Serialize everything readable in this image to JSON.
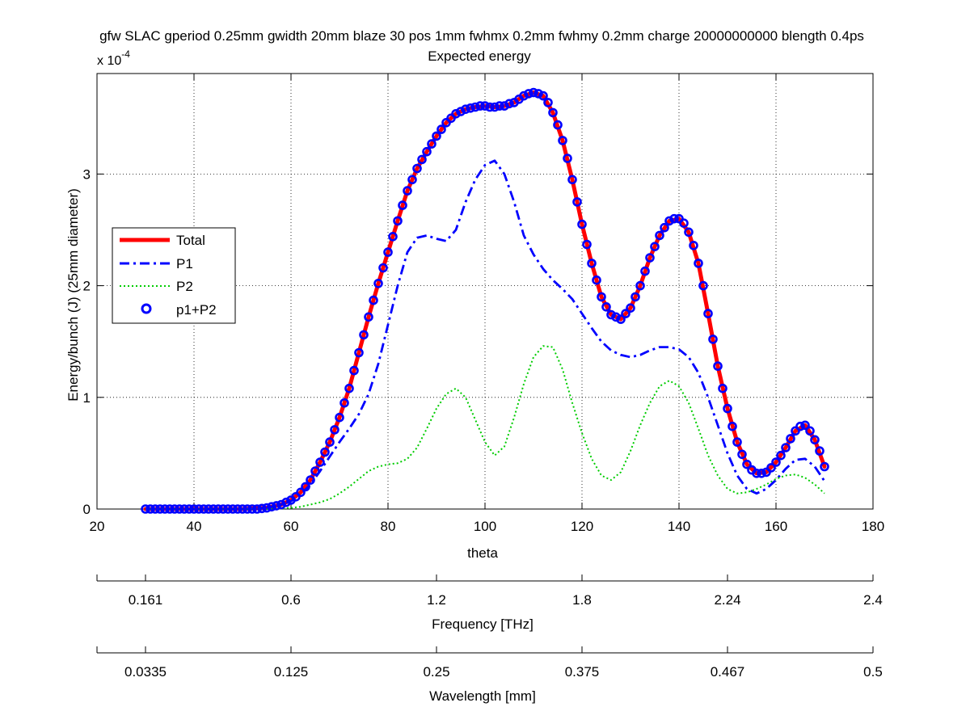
{
  "chart_data": {
    "type": "line",
    "title": "gfw SLAC gperiod 0.25mm gwidth 20mm blaze 30 pos 1mm fwhmx 0.2mm fwhmy 0.2mm charge 20000000000 blength 0.4ps",
    "subtitle": "Expected energy",
    "xlabel": "theta",
    "ylabel": "Energy/bunch (J) (25mm diameter)",
    "y_multiplier": "x 10",
    "y_multiplier_exp": "-4",
    "xlim": [
      20,
      180
    ],
    "ylim": [
      0,
      3.9
    ],
    "x_ticks": [
      20,
      40,
      60,
      80,
      100,
      120,
      140,
      160,
      180
    ],
    "y_ticks": [
      0,
      1,
      2,
      3
    ],
    "grid": true,
    "legend_position": "left",
    "legend": [
      "Total",
      "P1",
      "P2",
      "p1+P2"
    ],
    "series": [
      {
        "name": "Total",
        "color": "#ff0000",
        "style": "solid",
        "x": [
          30,
          50,
          55,
          58,
          60,
          62,
          64,
          66,
          68,
          70,
          72,
          74,
          76,
          78,
          80,
          82,
          84,
          86,
          88,
          90,
          92,
          94,
          96,
          98,
          100,
          102,
          104,
          106,
          108,
          110,
          112,
          114,
          116,
          118,
          120,
          122,
          124,
          126,
          128,
          130,
          132,
          134,
          136,
          138,
          140,
          142,
          144,
          146,
          148,
          150,
          152,
          154,
          156,
          158,
          160,
          162,
          164,
          166,
          168,
          170
        ],
        "values": [
          0,
          0,
          0.01,
          0.04,
          0.08,
          0.15,
          0.26,
          0.42,
          0.6,
          0.82,
          1.08,
          1.4,
          1.72,
          2.02,
          2.3,
          2.58,
          2.85,
          3.05,
          3.2,
          3.34,
          3.46,
          3.54,
          3.58,
          3.6,
          3.61,
          3.6,
          3.61,
          3.64,
          3.7,
          3.73,
          3.7,
          3.55,
          3.3,
          2.95,
          2.55,
          2.2,
          1.9,
          1.74,
          1.7,
          1.8,
          2.0,
          2.25,
          2.45,
          2.58,
          2.6,
          2.48,
          2.2,
          1.75,
          1.28,
          0.9,
          0.6,
          0.4,
          0.32,
          0.33,
          0.42,
          0.55,
          0.7,
          0.75,
          0.62,
          0.38
        ]
      },
      {
        "name": "P1",
        "color": "#0000ff",
        "style": "dashdot",
        "x": [
          30,
          50,
          55,
          58,
          60,
          62,
          64,
          66,
          68,
          70,
          72,
          74,
          76,
          78,
          80,
          82,
          84,
          86,
          88,
          90,
          92,
          94,
          96,
          98,
          100,
          102,
          104,
          106,
          108,
          110,
          112,
          114,
          116,
          118,
          120,
          122,
          124,
          126,
          128,
          130,
          132,
          134,
          136,
          138,
          140,
          142,
          144,
          146,
          148,
          150,
          152,
          154,
          156,
          158,
          160,
          162,
          164,
          166,
          168,
          170
        ],
        "values": [
          0,
          0,
          0.01,
          0.04,
          0.07,
          0.13,
          0.22,
          0.34,
          0.47,
          0.6,
          0.72,
          0.85,
          1.03,
          1.3,
          1.65,
          2.0,
          2.3,
          2.43,
          2.45,
          2.42,
          2.4,
          2.5,
          2.75,
          2.95,
          3.08,
          3.12,
          3.0,
          2.75,
          2.45,
          2.28,
          2.15,
          2.05,
          1.97,
          1.88,
          1.75,
          1.62,
          1.5,
          1.42,
          1.38,
          1.36,
          1.38,
          1.42,
          1.45,
          1.45,
          1.43,
          1.36,
          1.22,
          1.0,
          0.75,
          0.5,
          0.3,
          0.18,
          0.14,
          0.18,
          0.26,
          0.36,
          0.44,
          0.45,
          0.38,
          0.25
        ]
      },
      {
        "name": "P2",
        "color": "#00cc00",
        "style": "dotted",
        "x": [
          30,
          50,
          55,
          58,
          60,
          62,
          64,
          66,
          68,
          70,
          72,
          74,
          76,
          78,
          80,
          82,
          84,
          86,
          88,
          90,
          92,
          94,
          96,
          98,
          100,
          102,
          104,
          106,
          108,
          110,
          112,
          114,
          116,
          118,
          120,
          122,
          124,
          126,
          128,
          130,
          132,
          134,
          136,
          138,
          140,
          142,
          144,
          146,
          148,
          150,
          152,
          154,
          156,
          158,
          160,
          162,
          164,
          166,
          168,
          170
        ],
        "values": [
          0,
          0,
          0,
          0.005,
          0.01,
          0.02,
          0.04,
          0.06,
          0.09,
          0.14,
          0.2,
          0.27,
          0.34,
          0.38,
          0.4,
          0.41,
          0.45,
          0.55,
          0.72,
          0.9,
          1.03,
          1.08,
          1.0,
          0.8,
          0.6,
          0.48,
          0.56,
          0.82,
          1.12,
          1.36,
          1.46,
          1.45,
          1.25,
          0.95,
          0.68,
          0.45,
          0.3,
          0.26,
          0.33,
          0.52,
          0.75,
          0.95,
          1.1,
          1.15,
          1.1,
          0.95,
          0.72,
          0.48,
          0.3,
          0.18,
          0.14,
          0.15,
          0.18,
          0.22,
          0.27,
          0.3,
          0.31,
          0.28,
          0.22,
          0.14
        ]
      },
      {
        "name": "p1+P2",
        "color": "#0000ff",
        "style": "circles",
        "x": [
          30,
          31,
          32,
          33,
          34,
          35,
          36,
          37,
          38,
          39,
          40,
          41,
          42,
          43,
          44,
          45,
          46,
          47,
          48,
          49,
          50,
          51,
          52,
          53,
          54,
          55,
          56,
          57,
          58,
          59,
          60,
          61,
          62,
          63,
          64,
          65,
          66,
          67,
          68,
          69,
          70,
          71,
          72,
          73,
          74,
          75,
          76,
          77,
          78,
          79,
          80,
          81,
          82,
          83,
          84,
          85,
          86,
          87,
          88,
          89,
          90,
          91,
          92,
          93,
          94,
          95,
          96,
          97,
          98,
          99,
          100,
          101,
          102,
          103,
          104,
          105,
          106,
          107,
          108,
          109,
          110,
          111,
          112,
          113,
          114,
          115,
          116,
          117,
          118,
          119,
          120,
          121,
          122,
          123,
          124,
          125,
          126,
          127,
          128,
          129,
          130,
          131,
          132,
          133,
          134,
          135,
          136,
          137,
          138,
          139,
          140,
          141,
          142,
          143,
          144,
          145,
          146,
          147,
          148,
          149,
          150,
          151,
          152,
          153,
          154,
          155,
          156,
          157,
          158,
          159,
          160,
          161,
          162,
          163,
          164,
          165,
          166,
          167,
          168,
          169,
          170
        ],
        "values": [
          0,
          0,
          0,
          0,
          0,
          0,
          0,
          0,
          0,
          0,
          0,
          0,
          0,
          0,
          0,
          0,
          0,
          0,
          0,
          0,
          0,
          0,
          0,
          0,
          0.005,
          0.01,
          0.02,
          0.03,
          0.04,
          0.06,
          0.08,
          0.11,
          0.15,
          0.2,
          0.26,
          0.34,
          0.42,
          0.51,
          0.6,
          0.71,
          0.82,
          0.95,
          1.08,
          1.24,
          1.4,
          1.56,
          1.72,
          1.87,
          2.02,
          2.16,
          2.3,
          2.44,
          2.58,
          2.72,
          2.85,
          2.95,
          3.05,
          3.13,
          3.2,
          3.27,
          3.34,
          3.4,
          3.46,
          3.5,
          3.54,
          3.56,
          3.58,
          3.59,
          3.6,
          3.61,
          3.61,
          3.6,
          3.6,
          3.61,
          3.61,
          3.63,
          3.64,
          3.67,
          3.7,
          3.72,
          3.73,
          3.72,
          3.7,
          3.64,
          3.55,
          3.44,
          3.3,
          3.14,
          2.95,
          2.75,
          2.55,
          2.37,
          2.2,
          2.05,
          1.9,
          1.81,
          1.74,
          1.72,
          1.7,
          1.75,
          1.8,
          1.9,
          2.0,
          2.13,
          2.25,
          2.35,
          2.45,
          2.52,
          2.58,
          2.6,
          2.6,
          2.56,
          2.48,
          2.36,
          2.2,
          2.0,
          1.75,
          1.52,
          1.28,
          1.08,
          0.9,
          0.74,
          0.6,
          0.49,
          0.4,
          0.35,
          0.32,
          0.32,
          0.33,
          0.37,
          0.42,
          0.48,
          0.55,
          0.63,
          0.7,
          0.74,
          0.75,
          0.7,
          0.62,
          0.52,
          0.38
        ]
      }
    ]
  },
  "axes2": {
    "label": "Frequency [THz]",
    "tick_labels": [
      "0.161",
      "0.6",
      "1.2",
      "1.8",
      "2.24",
      "2.4"
    ]
  },
  "axes3": {
    "label": "Wavelength [mm]",
    "tick_labels": [
      "0.0335",
      "0.125",
      "0.25",
      "0.375",
      "0.467",
      "0.5"
    ]
  }
}
